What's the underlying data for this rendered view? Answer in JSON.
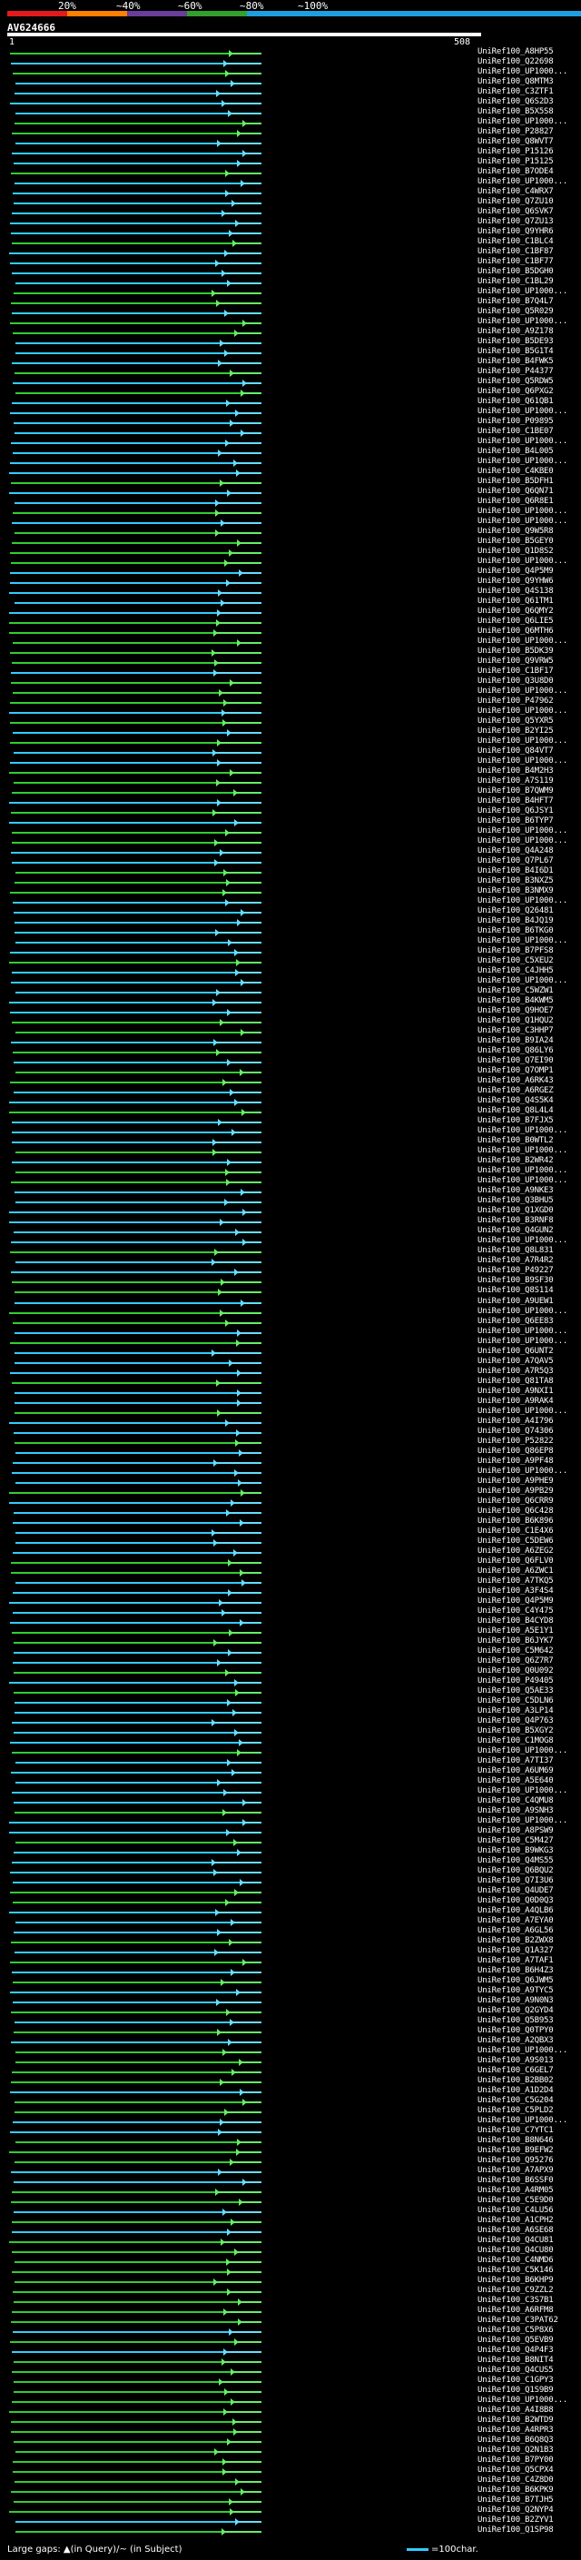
{
  "legend": {
    "labels": [
      "20%",
      "~40%",
      "~60%",
      "~80%",
      "~100%"
    ],
    "colors": [
      "#e31a1c",
      "#ff7f00",
      "#6a3d9a",
      "#33a02c",
      "#1f9fdf"
    ]
  },
  "query": {
    "id": "AV624666",
    "start": "1",
    "end": "508"
  },
  "hit_colors": {
    "cyan": "#33ccff",
    "green": "#33cc33",
    "arrow_cyan": "#66ddff",
    "arrow_green": "#66ee66"
  },
  "hits": [
    "UniRef100_A8HP55",
    "UniRef100_Q22698",
    "UniRef100_UP1000...",
    "UniRef100_Q8MTM3",
    "UniRef100_C3ZTF1",
    "UniRef100_Q6S2D3",
    "UniRef100_B5X5S8",
    "UniRef100_UP1000...",
    "UniRef100_P28827",
    "UniRef100_Q8WVT7",
    "UniRef100_P15126",
    "UniRef100_P15125",
    "UniRef100_B7ODE4",
    "UniRef100_UP1000...",
    "UniRef100_C4WRX7",
    "UniRef100_Q7ZU10",
    "UniRef100_Q6SVK7",
    "UniRef100_Q7ZU13",
    "UniRef100_Q9YHR6",
    "UniRef100_C1BLC4",
    "UniRef100_C1BF87",
    "UniRef100_C1BF77",
    "UniRef100_B5DGH0",
    "UniRef100_C1BL29",
    "UniRef100_UP1000...",
    "UniRef100_B7Q4L7",
    "UniRef100_Q5R029",
    "UniRef100_UP1000...",
    "UniRef100_A9Z178",
    "UniRef100_B5DE93",
    "UniRef100_B5G1T4",
    "UniRef100_B4FWK5",
    "UniRef100_P44377",
    "UniRef100_Q5RDW5",
    "UniRef100_Q6PXG2",
    "UniRef100_Q61QB1",
    "UniRef100_UP1000...",
    "UniRef100_P09895",
    "UniRef100_C1BE07",
    "UniRef100_UP1000...",
    "UniRef100_B4L005",
    "UniRef100_UP1000...",
    "UniRef100_C4KBE0",
    "UniRef100_B5DFH1",
    "UniRef100_Q6QN71",
    "UniRef100_Q6R8E1",
    "UniRef100_UP1000...",
    "UniRef100_UP1000...",
    "UniRef100_Q9W5R8",
    "UniRef100_B5GEY0",
    "UniRef100_Q1D8S2",
    "UniRef100_UP1000...",
    "UniRef100_Q4P5M9",
    "UniRef100_Q9YHW6",
    "UniRef100_Q4S138",
    "UniRef100_Q61TM1",
    "UniRef100_Q6QMY2",
    "UniRef100_Q6LIE5",
    "UniRef100_Q6MTH6",
    "UniRef100_UP1000...",
    "UniRef100_B5DK39",
    "UniRef100_Q9VRW5",
    "UniRef100_C1BF17",
    "UniRef100_Q3U8D0",
    "UniRef100_UP1000...",
    "UniRef100_P47962",
    "UniRef100_UP1000...",
    "UniRef100_Q5YXR5",
    "UniRef100_B2YI25",
    "UniRef100_UP1000...",
    "UniRef100_Q84VT7",
    "UniRef100_UP1000...",
    "UniRef100_B4M2H3",
    "UniRef100_A7S119",
    "UniRef100_B7QWM9",
    "UniRef100_B4HFT7",
    "UniRef100_Q6JSY1",
    "UniRef100_B6TYP7",
    "UniRef100_UP1000...",
    "UniRef100_UP1000...",
    "UniRef100_Q4A248",
    "UniRef100_Q7PL67",
    "UniRef100_B4I6D1",
    "UniRef100_B3NXZ5",
    "UniRef100_B3NMX9",
    "UniRef100_UP1000...",
    "UniRef100_Q26481",
    "UniRef100_B4JQ19",
    "UniRef100_B6TKG0",
    "UniRef100_UP1000...",
    "UniRef100_B7PFS8",
    "UniRef100_C5XEU2",
    "UniRef100_C4JHH5",
    "UniRef100_UP1000...",
    "UniRef100_C5WZW1",
    "UniRef100_B4KWM5",
    "UniRef100_Q9HOE7",
    "UniRef100_Q1HQU2",
    "UniRef100_C3HHP7",
    "UniRef100_B9IA24",
    "UniRef100_Q86LY6",
    "UniRef100_Q7EI90",
    "UniRef100_Q7OMP1",
    "UniRef100_A6RK43",
    "UniRef100_A6RGEZ",
    "UniRef100_Q4S5K4",
    "UniRef100_Q8L4L4",
    "UniRef100_B7FJX5",
    "UniRef100_UP1000...",
    "UniRef100_B0WTL2",
    "UniRef100_UP1000...",
    "UniRef100_B2WR42",
    "UniRef100_UP1000...",
    "UniRef100_UP1000...",
    "UniRef100_A9NKE3",
    "UniRef100_Q3BHU5",
    "UniRef100_Q1XGD0",
    "UniRef100_B3RNF8",
    "UniRef100_Q4GUN2",
    "UniRef100_UP1000...",
    "UniRef100_Q8L831",
    "UniRef100_A7R4R2",
    "UniRef100_P49227",
    "UniRef100_B9SF30",
    "UniRef100_Q8S114",
    "UniRef100_A9UEW1",
    "UniRef100_UP1000...",
    "UniRef100_Q6EE83",
    "UniRef100_UP1000...",
    "UniRef100_UP1000...",
    "UniRef100_Q6UNT2",
    "UniRef100_A7QAV5",
    "UniRef100_A7R5Q3",
    "UniRef100_Q81TA8",
    "UniRef100_A9NXI1",
    "UniRef100_A9RAK4",
    "UniRef100_UP1000...",
    "UniRef100_A4I796",
    "UniRef100_Q74306",
    "UniRef100_P52822",
    "UniRef100_Q86EP8",
    "UniRef100_A9PF48",
    "UniRef100_UP1000...",
    "UniRef100_A9PHE9",
    "UniRef100_A9PB29",
    "UniRef100_Q6CRR9",
    "UniRef100_Q6C428",
    "UniRef100_B6K896",
    "UniRef100_C1E4X6",
    "UniRef100_C5DEW6",
    "UniRef100_A6ZEG2",
    "UniRef100_Q6FLV0",
    "UniRef100_A6ZWC1",
    "UniRef100_A7TKQ5",
    "UniRef100_A3F4S4",
    "UniRef100_Q4P5M9",
    "UniRef100_C4Y475",
    "UniRef100_B4CYD8",
    "UniRef100_A5E1Y1",
    "UniRef100_B6JYK7",
    "UniRef100_C5M642",
    "UniRef100_Q6Z7R7",
    "UniRef100_Q0U092",
    "UniRef100_P49405",
    "UniRef100_Q5AE33",
    "UniRef100_C5DLN6",
    "UniRef100_A3LP14",
    "UniRef100_Q4P763",
    "UniRef100_B5XGY2",
    "UniRef100_C1MOG8",
    "UniRef100_UP1000...",
    "UniRef100_A7TI37",
    "UniRef100_A6UM69",
    "UniRef100_A5E640",
    "UniRef100_UP1000...",
    "UniRef100_C4QMU8",
    "UniRef100_A9SNH3",
    "UniRef100_UP1000...",
    "UniRef100_A8PSW9",
    "UniRef100_C5M427",
    "UniRef100_B9WKG3",
    "UniRef100_Q4MS55",
    "UniRef100_Q6BQU2",
    "UniRef100_Q7I3U6",
    "UniRef100_Q4UDE7",
    "UniRef100_Q0D0Q3",
    "UniRef100_A4QLB6",
    "UniRef100_A7EYA0",
    "UniRef100_A6GL56",
    "UniRef100_B2ZWX8",
    "UniRef100_Q1A327",
    "UniRef100_A7TAF1",
    "UniRef100_B6H4Z3",
    "UniRef100_Q6JWM5",
    "UniRef100_A9TYC5",
    "UniRef100_A9N0N3",
    "UniRef100_Q2GYD4",
    "UniRef100_Q5B953",
    "UniRef100_Q0TPY0",
    "UniRef100_A2QBX3",
    "UniRef100_UP1000...",
    "UniRef100_A9S013",
    "UniRef100_C6GEL7",
    "UniRef100_B2BB02",
    "UniRef100_A1D2D4",
    "UniRef100_C5G204",
    "UniRef100_C5PLD2",
    "UniRef100_UP1000...",
    "UniRef100_C7YTC1",
    "UniRef100_B8N646",
    "UniRef100_B9EFW2",
    "UniRef100_Q95276",
    "UniRef100_A7APX9",
    "UniRef100_B6SSF0",
    "UniRef100_A4RM05",
    "UniRef100_C5E9D0",
    "UniRef100_C4LU56",
    "UniRef100_A1CPH2",
    "UniRef100_A6SE68",
    "UniRef100_Q4CU81",
    "UniRef100_Q4CU80",
    "UniRef100_C4NMD6",
    "UniRef100_C5K146",
    "UniRef100_B6KHP9",
    "UniRef100_C9ZZL2",
    "UniRef100_C3S7B1",
    "UniRef100_A6RFM8",
    "UniRef100_C3PAT62",
    "UniRef100_C5P8X6",
    "UniRef100_Q5EVB9",
    "UniRef100_Q4P4F3",
    "UniRef100_B8NIT4",
    "UniRef100_Q4CUS5",
    "UniRef100_C1GPY3",
    "UniRef100_Q1S9B9",
    "UniRef100_UP1000...",
    "UniRef100_A4I8B8",
    "UniRef100_B2WTD9",
    "UniRef100_A4RPR3",
    "UniRef100_B6Q8Q3",
    "UniRef100_Q2N1B3",
    "UniRef100_B7PY00",
    "UniRef100_Q5CPX4",
    "UniRef100_C4Z8D0",
    "UniRef100_B6KPK9",
    "UniRef100_B7TJH5",
    "UniRef100_Q2NYP4",
    "UniRef100_B2ZYV1",
    "UniRef100_Q1SP98"
  ],
  "footer": {
    "large_gaps": "Large gaps: ▲(in Query)/~ (in Subject)",
    "scale": "=100char."
  }
}
